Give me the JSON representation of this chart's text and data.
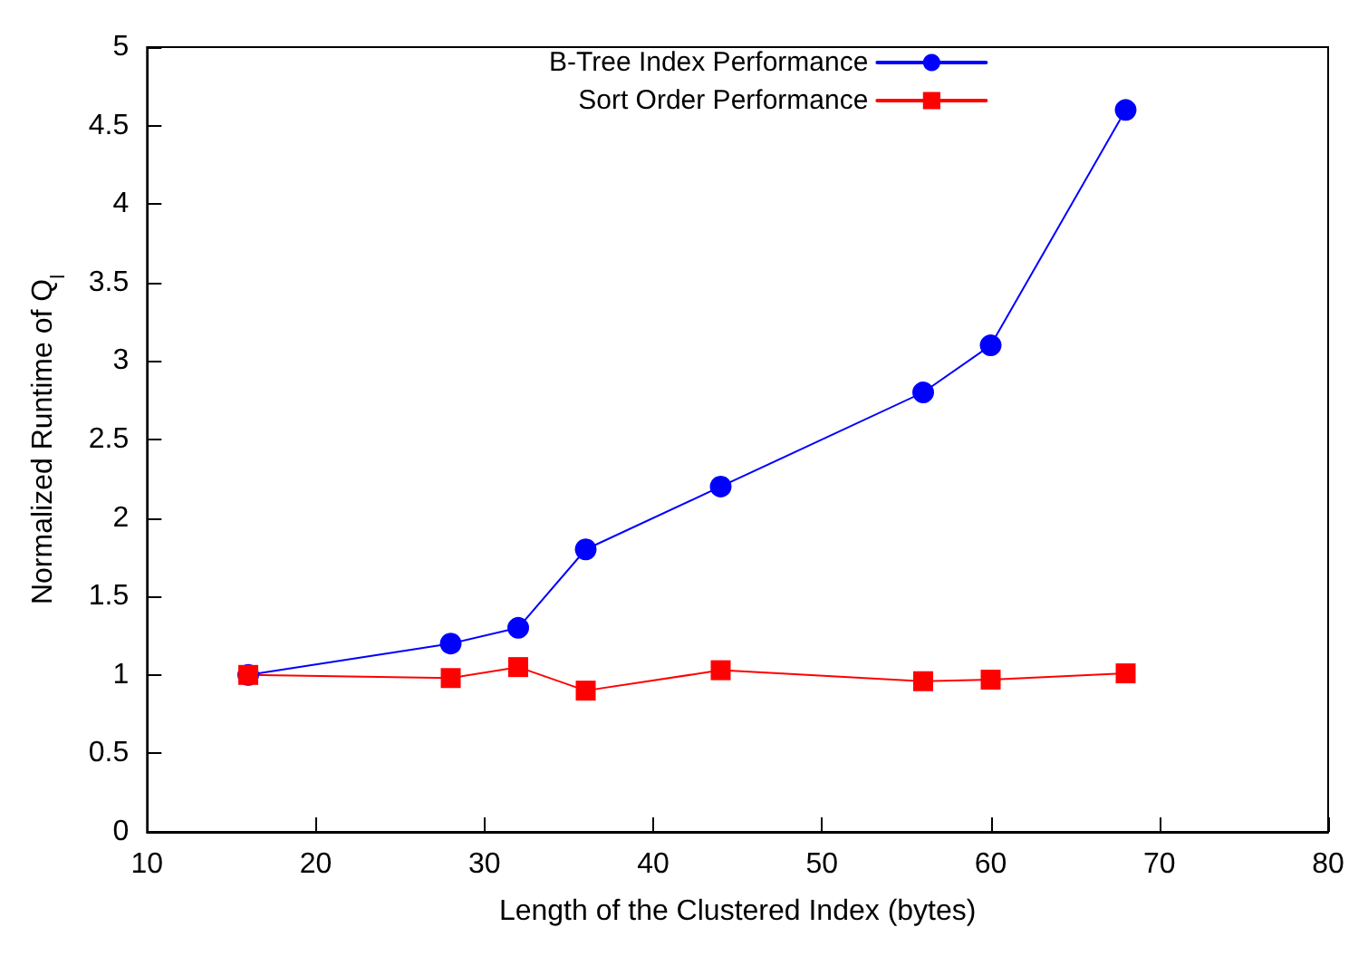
{
  "chart_data": {
    "type": "line",
    "xlabel": "Length of the Clustered Index (bytes)",
    "ylabel": "Normalized Runtime of Q$_{l}$",
    "x": [
      16,
      28,
      32,
      36,
      44,
      56,
      60,
      68
    ],
    "series": [
      {
        "name": "B-Tree Index Performance",
        "color": "#0000ff",
        "marker": "circle",
        "values": [
          1,
          1.2,
          1.3,
          1.8,
          2.2,
          2.8,
          3.1,
          4.6
        ]
      },
      {
        "name": "Sort Order Performance",
        "color": "#ff0000",
        "marker": "square",
        "values": [
          1,
          0.98,
          1.05,
          0.9,
          1.03,
          0.96,
          0.97,
          1.01
        ]
      }
    ],
    "xlim": [
      10,
      80
    ],
    "xticks": [
      10,
      20,
      30,
      40,
      50,
      60,
      70,
      80
    ],
    "ylim": [
      0,
      5
    ],
    "yticks": [
      0,
      0.5,
      1,
      1.5,
      2,
      2.5,
      3,
      3.5,
      4,
      4.5,
      5
    ],
    "grid": false,
    "legend": "top",
    "line_style": "solid"
  }
}
